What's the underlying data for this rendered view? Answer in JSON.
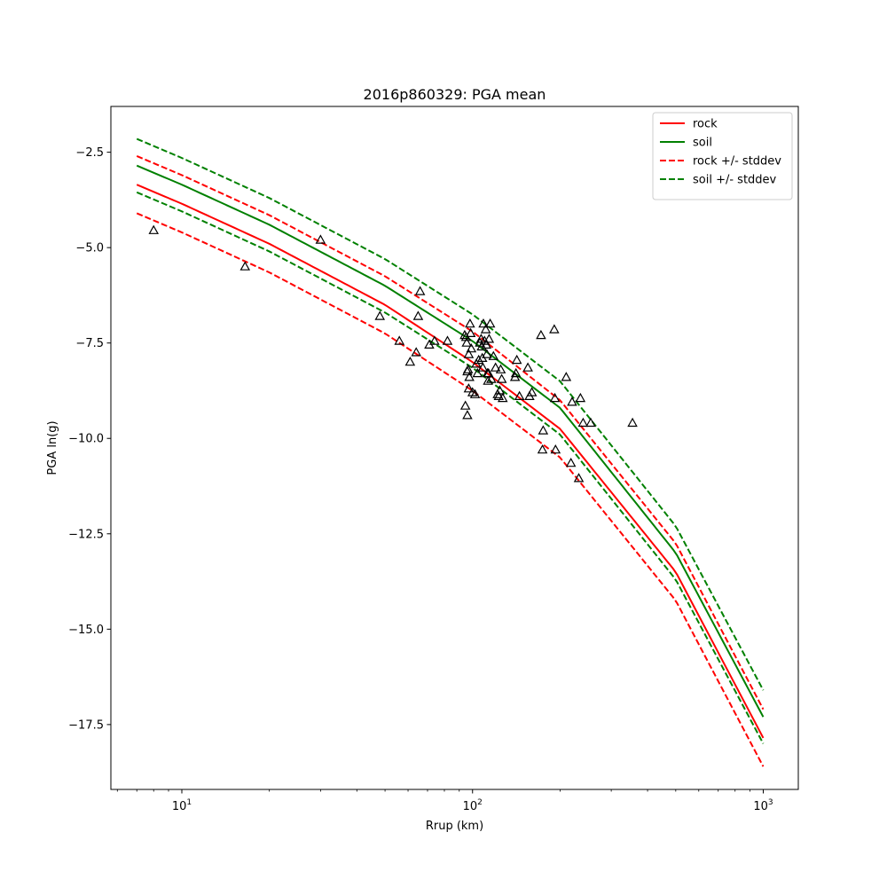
{
  "chart_data": {
    "type": "line",
    "title": "2016p860329: PGA mean",
    "xlabel": "Rrup (km)",
    "ylabel": "PGA ln(g)",
    "xscale": "log",
    "xlim": [
      5.7,
      1320
    ],
    "ylim": [
      -19.2,
      -1.3
    ],
    "x_ticks": [
      {
        "value": 10,
        "base": "10",
        "exp": "1"
      },
      {
        "value": 100,
        "base": "10",
        "exp": "2"
      },
      {
        "value": 1000,
        "base": "10",
        "exp": "3"
      }
    ],
    "y_ticks": [
      {
        "value": -2.5,
        "label": "−2.5"
      },
      {
        "value": -5.0,
        "label": "−5.0"
      },
      {
        "value": -7.5,
        "label": "−7.5"
      },
      {
        "value": -10.0,
        "label": "−10.0"
      },
      {
        "value": -12.5,
        "label": "−12.5"
      },
      {
        "value": -15.0,
        "label": "−15.0"
      },
      {
        "value": -17.5,
        "label": "−17.5"
      }
    ],
    "grid": false,
    "legend_position": "top-right",
    "series": [
      {
        "name": "rock",
        "color": "#ff0000",
        "dash": "solid",
        "x": [
          7,
          10,
          20,
          50,
          100,
          200,
          500,
          1000
        ],
        "y": [
          -3.35,
          -3.85,
          -4.9,
          -6.5,
          -8.0,
          -9.75,
          -13.5,
          -17.85
        ]
      },
      {
        "name": "soil",
        "color": "#008000",
        "dash": "solid",
        "x": [
          7,
          10,
          20,
          50,
          100,
          200,
          500,
          1000
        ],
        "y": [
          -2.85,
          -3.35,
          -4.4,
          -6.0,
          -7.45,
          -9.2,
          -13.0,
          -17.3
        ]
      },
      {
        "name": "rock +/- stddev",
        "color": "#ff0000",
        "dash": "dashed",
        "x": [
          7,
          10,
          20,
          50,
          100,
          200,
          500,
          1000
        ],
        "y": [
          -2.6,
          -3.1,
          -4.15,
          -5.75,
          -7.2,
          -9.0,
          -12.75,
          -17.1
        ]
      },
      {
        "name": "",
        "color": "#ff0000",
        "dash": "dashed",
        "x": [
          7,
          10,
          20,
          50,
          100,
          200,
          500,
          1000
        ],
        "y": [
          -4.1,
          -4.6,
          -5.65,
          -7.25,
          -8.75,
          -10.5,
          -14.25,
          -18.6
        ]
      },
      {
        "name": "soil +/- stddev",
        "color": "#008000",
        "dash": "dashed",
        "x": [
          7,
          10,
          20,
          50,
          100,
          200,
          500,
          1000
        ],
        "y": [
          -2.15,
          -2.65,
          -3.7,
          -5.3,
          -6.75,
          -8.5,
          -12.3,
          -16.6
        ]
      },
      {
        "name": "",
        "color": "#008000",
        "dash": "dashed",
        "x": [
          7,
          10,
          20,
          50,
          100,
          200,
          500,
          1000
        ],
        "y": [
          -3.55,
          -4.05,
          -5.1,
          -6.7,
          -8.15,
          -9.9,
          -13.7,
          -18.0
        ]
      }
    ],
    "observations": {
      "marker": "open-triangle",
      "color": "#000000",
      "points": [
        [
          8.0,
          -4.55
        ],
        [
          16.5,
          -5.5
        ],
        [
          30,
          -4.8
        ],
        [
          48,
          -6.8
        ],
        [
          56,
          -7.45
        ],
        [
          61,
          -8.0
        ],
        [
          64,
          -7.75
        ],
        [
          65,
          -6.8
        ],
        [
          66,
          -6.15
        ],
        [
          71,
          -7.55
        ],
        [
          74,
          -7.45
        ],
        [
          82,
          -7.45
        ],
        [
          94,
          -7.3
        ],
        [
          94.5,
          -9.15
        ],
        [
          95,
          -7.35
        ],
        [
          95.5,
          -7.5
        ],
        [
          96,
          -8.25
        ],
        [
          96.5,
          -8.2
        ],
        [
          97,
          -7.8
        ],
        [
          97.5,
          -8.4
        ],
        [
          98,
          -7.0
        ],
        [
          98.5,
          -7.25
        ],
        [
          99,
          -7.65
        ],
        [
          97,
          -8.7
        ],
        [
          96,
          -9.4
        ],
        [
          100,
          -8.8
        ],
        [
          102,
          -8.85
        ],
        [
          103,
          -8.05
        ],
        [
          104,
          -8.3
        ],
        [
          105,
          -7.95
        ],
        [
          106,
          -7.5
        ],
        [
          107,
          -7.4
        ],
        [
          107.5,
          -7.6
        ],
        [
          108,
          -7.9
        ],
        [
          108.5,
          -8.15
        ],
        [
          109,
          -7.0
        ],
        [
          110,
          -7.45
        ],
        [
          111,
          -7.15
        ],
        [
          111.5,
          -7.55
        ],
        [
          112,
          -7.8
        ],
        [
          112.5,
          -8.3
        ],
        [
          113,
          -8.5
        ],
        [
          113.5,
          -8.3
        ],
        [
          114,
          -7.4
        ],
        [
          115,
          -7.0
        ],
        [
          116,
          -8.45
        ],
        [
          118,
          -7.85
        ],
        [
          120,
          -8.15
        ],
        [
          122,
          -8.85
        ],
        [
          123,
          -8.9
        ],
        [
          124,
          -8.75
        ],
        [
          125,
          -8.2
        ],
        [
          126,
          -8.45
        ],
        [
          127,
          -8.95
        ],
        [
          140,
          -8.4
        ],
        [
          141,
          -8.3
        ],
        [
          142,
          -7.95
        ],
        [
          145,
          -8.9
        ],
        [
          155,
          -8.15
        ],
        [
          157,
          -8.9
        ],
        [
          160,
          -8.8
        ],
        [
          172,
          -7.3
        ],
        [
          175,
          -9.8
        ],
        [
          174,
          -10.3
        ],
        [
          191,
          -7.15
        ],
        [
          192,
          -8.95
        ],
        [
          193,
          -10.3
        ],
        [
          210,
          -8.4
        ],
        [
          218,
          -10.65
        ],
        [
          220,
          -9.05
        ],
        [
          232,
          -11.05
        ],
        [
          235,
          -8.95
        ],
        [
          240,
          -9.6
        ],
        [
          255,
          -9.6
        ],
        [
          355,
          -9.6
        ]
      ]
    }
  }
}
